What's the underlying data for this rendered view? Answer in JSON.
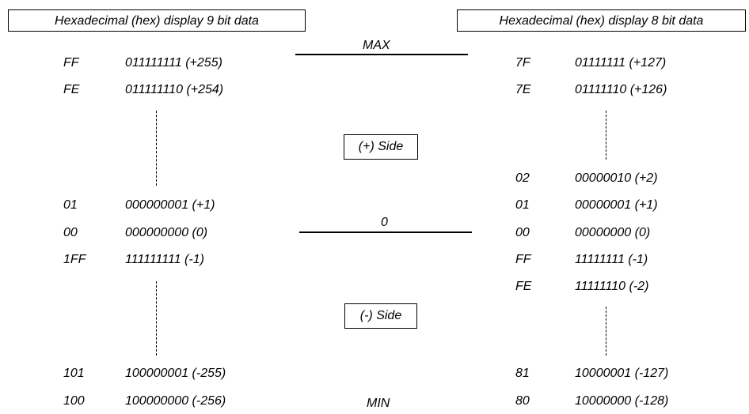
{
  "left": {
    "title": "Hexadecimal (hex) display 9 bit data",
    "rows": [
      {
        "hex": "FF",
        "bin": "011111111 (+255)"
      },
      {
        "hex": "FE",
        "bin": "011111110 (+254)"
      },
      {
        "hex": "01",
        "bin": "000000001 (+1)"
      },
      {
        "hex": "00",
        "bin": "000000000 (0)"
      },
      {
        "hex": "1FF",
        "bin": "111111111 (-1)"
      },
      {
        "hex": "101",
        "bin": "100000001 (-255)"
      },
      {
        "hex": "100",
        "bin": "100000000 (-256)"
      }
    ]
  },
  "right": {
    "title": "Hexadecimal (hex) display 8 bit data",
    "rows": [
      {
        "hex": "7F",
        "bin": "01111111 (+127)"
      },
      {
        "hex": "7E",
        "bin": "01111110 (+126)"
      },
      {
        "hex": "02",
        "bin": "00000010 (+2)"
      },
      {
        "hex": "01",
        "bin": "00000001 (+1)"
      },
      {
        "hex": "00",
        "bin": "00000000 (0)"
      },
      {
        "hex": "FF",
        "bin": "11111111 (-1)"
      },
      {
        "hex": "FE",
        "bin": "11111110 (-2)"
      },
      {
        "hex": "81",
        "bin": "10000001 (-127)"
      },
      {
        "hex": "80",
        "bin": "10000000 (-128)"
      }
    ]
  },
  "center": {
    "max_label": "MAX",
    "zero_label": "0",
    "min_label": "MIN",
    "plus_side": "(+) Side",
    "minus_side": "(-) Side"
  }
}
